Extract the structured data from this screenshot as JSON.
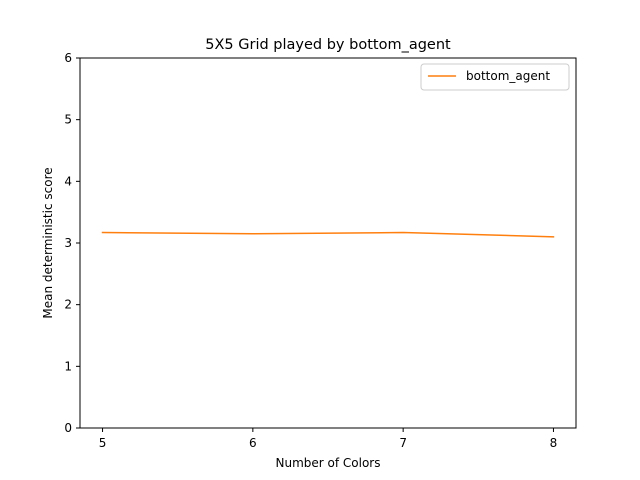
{
  "chart_data": {
    "type": "line",
    "title": "5X5 Grid played by bottom_agent",
    "xlabel": "Number of Colors",
    "ylabel": "Mean deterministic score",
    "x": [
      5,
      6,
      7,
      8
    ],
    "xticks": [
      5,
      6,
      7,
      8
    ],
    "yticks": [
      0,
      1,
      2,
      3,
      4,
      5,
      6
    ],
    "xlim": [
      4.85,
      8.15
    ],
    "ylim": [
      0,
      6
    ],
    "grid": false,
    "legend": "top-right",
    "series": [
      {
        "name": "bottom_agent",
        "color": "#ff7f0e",
        "values": [
          3.17,
          3.15,
          3.17,
          3.1
        ]
      }
    ]
  }
}
